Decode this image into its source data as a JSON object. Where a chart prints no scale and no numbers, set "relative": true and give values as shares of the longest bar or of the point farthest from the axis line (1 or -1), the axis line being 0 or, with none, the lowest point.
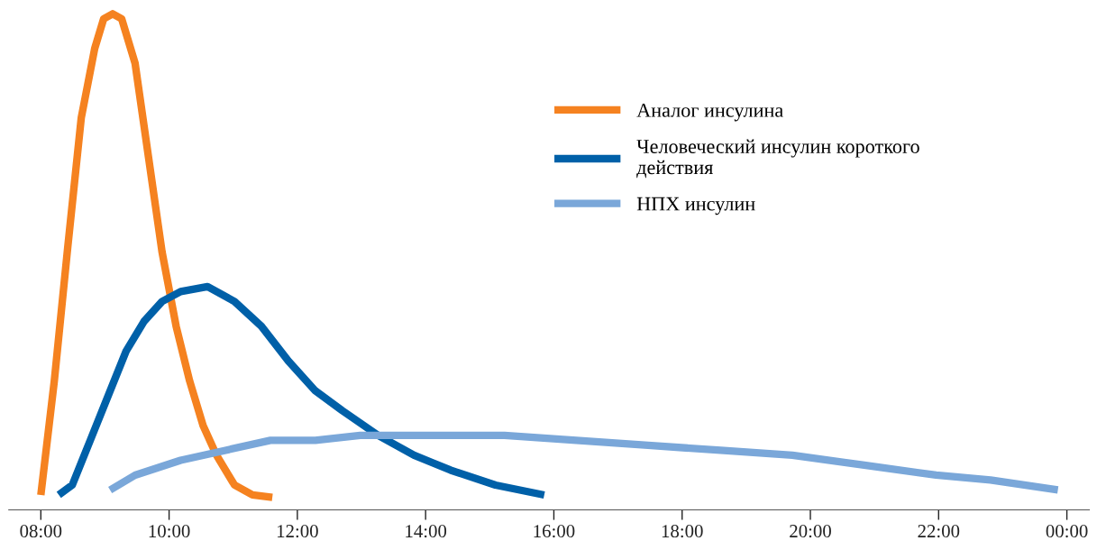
{
  "chart_data": {
    "type": "line",
    "relative": true,
    "xlim": [
      7.5,
      24.35
    ],
    "xticks": [
      {
        "value": 8,
        "label": "08:00"
      },
      {
        "value": 10,
        "label": "10:00"
      },
      {
        "value": 12,
        "label": "12:00"
      },
      {
        "value": 14,
        "label": "14:00"
      },
      {
        "value": 16,
        "label": "16:00"
      },
      {
        "value": 18,
        "label": "18:00"
      },
      {
        "value": 20,
        "label": "20:00"
      },
      {
        "value": 22,
        "label": "22:00"
      },
      {
        "value": 24,
        "label": "00:00"
      }
    ],
    "grid": false,
    "legend": "top right",
    "marker": "none",
    "line_style": "solid",
    "tick_labels": "x",
    "series": [
      {
        "name": "Аналог инсулина",
        "color": "#f58220",
        "x": [
          8.0,
          8.21,
          8.42,
          8.63,
          8.84,
          8.98,
          9.12,
          9.26,
          9.47,
          9.68,
          9.89,
          10.11,
          10.32,
          10.53,
          10.74,
          11.02,
          11.3,
          11.61
        ],
        "values": [
          0.03,
          0.26,
          0.53,
          0.79,
          0.93,
          0.99,
          1.0,
          0.99,
          0.9,
          0.71,
          0.52,
          0.37,
          0.26,
          0.17,
          0.11,
          0.05,
          0.03,
          0.025
        ]
      },
      {
        "name": "Человеческий инсулин короткого\nдействия",
        "color": "#0060a8",
        "x": [
          8.28,
          8.49,
          8.77,
          9.05,
          9.33,
          9.61,
          9.89,
          10.18,
          10.6,
          11.02,
          11.44,
          11.86,
          12.28,
          12.7,
          13.26,
          13.82,
          14.39,
          15.09,
          15.85
        ],
        "values": [
          0.03,
          0.05,
          0.14,
          0.23,
          0.32,
          0.38,
          0.42,
          0.44,
          0.45,
          0.42,
          0.37,
          0.3,
          0.24,
          0.2,
          0.15,
          0.11,
          0.08,
          0.05,
          0.03
        ]
      },
      {
        "name": "НПХ инсулин",
        "color": "#7aa7d9",
        "x": [
          9.08,
          9.47,
          10.18,
          10.88,
          11.58,
          12.28,
          12.98,
          14.11,
          15.23,
          16.35,
          17.47,
          18.6,
          19.72,
          20.84,
          21.96,
          22.81,
          23.86
        ],
        "values": [
          0.04,
          0.07,
          0.1,
          0.12,
          0.14,
          0.14,
          0.15,
          0.15,
          0.15,
          0.14,
          0.13,
          0.12,
          0.11,
          0.09,
          0.07,
          0.06,
          0.04
        ]
      }
    ]
  }
}
